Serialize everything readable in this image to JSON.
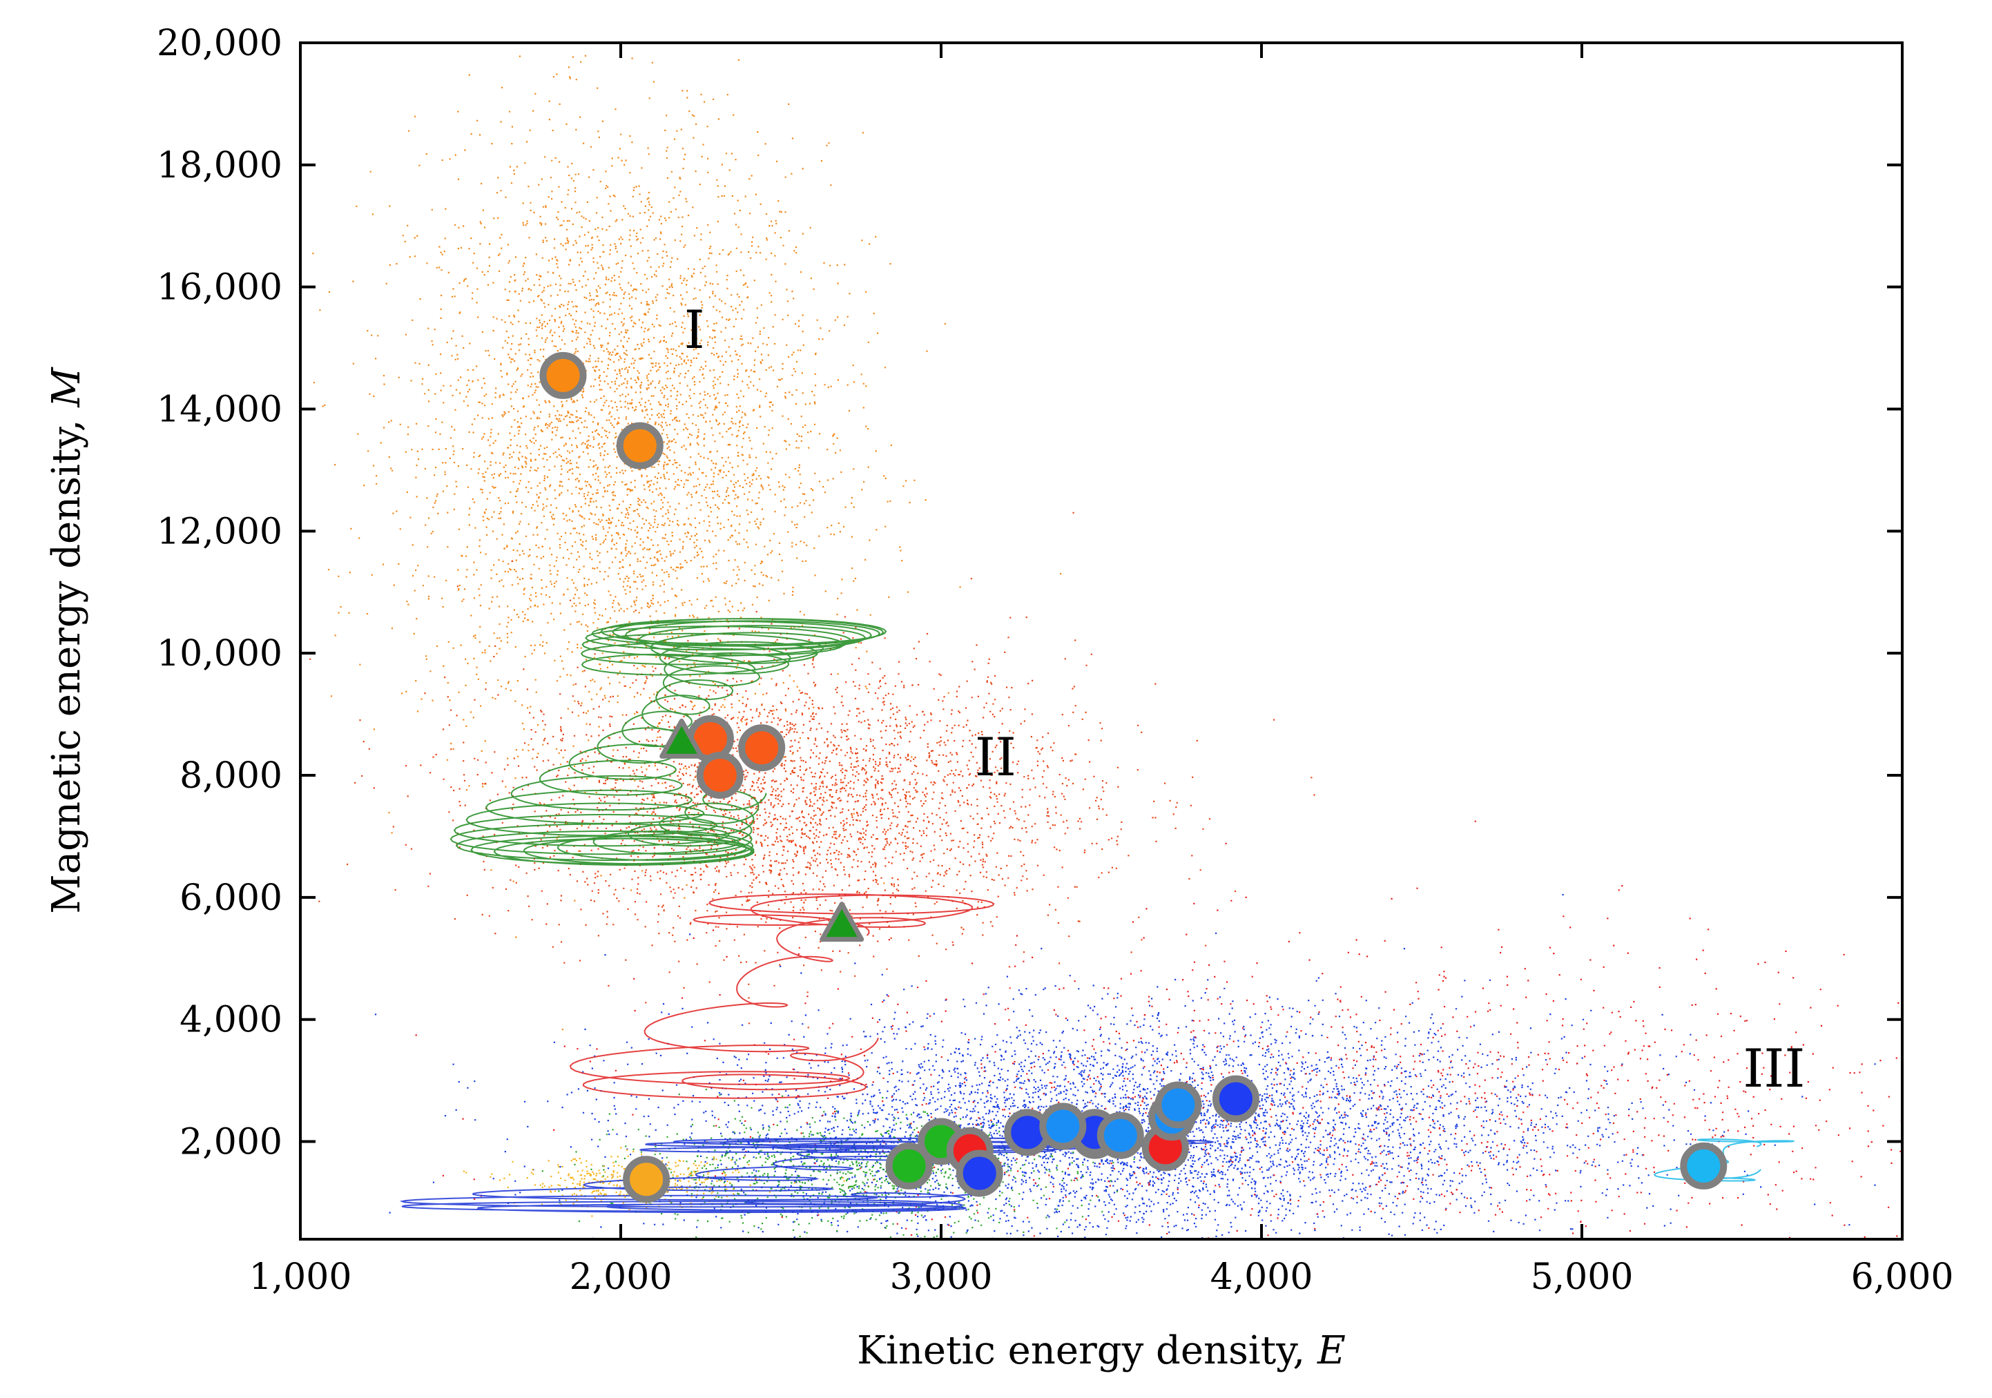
{
  "chart_data": {
    "type": "scatter",
    "xlabel": "Kinetic energy density, ",
    "xlabel_var": "E",
    "ylabel": "Magnetic energy density, ",
    "ylabel_var": "M",
    "xlim": [
      1000,
      6000
    ],
    "ylim": [
      400,
      20000
    ],
    "x_ticks": [
      1000,
      2000,
      3000,
      4000,
      5000,
      6000
    ],
    "x_tick_labels": [
      "1,000",
      "2,000",
      "3,000",
      "4,000",
      "5,000",
      "6,000"
    ],
    "y_ticks": [
      2000,
      4000,
      6000,
      8000,
      10000,
      12000,
      14000,
      16000,
      18000,
      20000
    ],
    "y_tick_labels": [
      "2,000",
      "4,000",
      "6,000",
      "8,000",
      "10,000",
      "12,000",
      "14,000",
      "16,000",
      "18,000",
      "20,000"
    ],
    "region_labels": [
      {
        "text": "I",
        "x": 2230,
        "y": 15000
      },
      {
        "text": "II",
        "x": 3170,
        "y": 8000
      },
      {
        "text": "III",
        "x": 5600,
        "y": 2900
      }
    ],
    "clouds": [
      {
        "name": "orange-cloud",
        "color": "#f28a1e",
        "cx": 2000,
        "cy": 13500,
        "sx": 320,
        "sy": 2400,
        "count": 4200
      },
      {
        "name": "red-orange-cloud",
        "color": "#e8491d",
        "cx": 2550,
        "cy": 7600,
        "sx": 450,
        "sy": 1100,
        "count": 3200
      },
      {
        "name": "blue-cloud",
        "color": "#1a3ee0",
        "cx": 3600,
        "cy": 2200,
        "sx": 700,
        "sy": 900,
        "count": 5200
      },
      {
        "name": "red-sparse-cloud",
        "color": "#e82020",
        "cx": 4300,
        "cy": 2600,
        "sx": 1000,
        "sy": 1300,
        "count": 1400
      },
      {
        "name": "green-sparse-cloud",
        "color": "#2fa82f",
        "cx": 2700,
        "cy": 1500,
        "sx": 350,
        "sy": 450,
        "count": 1000
      },
      {
        "name": "yellow-cloud",
        "color": "#f5b520",
        "cx": 2050,
        "cy": 1350,
        "sx": 180,
        "sy": 200,
        "count": 400
      }
    ],
    "trajectories": [
      {
        "name": "green-trajectory",
        "color": "#1e8a1e",
        "x_range": [
          1450,
          2850
        ],
        "y_range": [
          6400,
          10700
        ],
        "loops": 34
      },
      {
        "name": "red-trajectory",
        "color": "#e02020",
        "x_range": [
          1800,
          3200
        ],
        "y_range": [
          2600,
          6200
        ],
        "loops": 10
      },
      {
        "name": "blue-trajectory",
        "color": "#1a33d6",
        "x_range": [
          1250,
          3900
        ],
        "y_range": [
          800,
          2100
        ],
        "loops": 16
      },
      {
        "name": "cyan-trajectory",
        "color": "#1ab8e8",
        "x_range": [
          5200,
          5700
        ],
        "y_range": [
          1300,
          2100
        ],
        "loops": 4
      }
    ],
    "series": [
      {
        "name": "orange-mean",
        "color": "#f88a14",
        "marker": "circle",
        "points": [
          [
            1820,
            14550
          ],
          [
            2060,
            13400
          ]
        ]
      },
      {
        "name": "red-orange-mean",
        "color": "#f85a1a",
        "marker": "circle",
        "points": [
          [
            2280,
            8600
          ],
          [
            2440,
            8450
          ],
          [
            2310,
            8000
          ]
        ]
      },
      {
        "name": "green-triangles",
        "color": "#1a9a1a",
        "marker": "triangle",
        "points": [
          [
            2190,
            8550
          ],
          [
            2690,
            5550
          ]
        ]
      },
      {
        "name": "yellow-mean",
        "color": "#f7a821",
        "marker": "circle",
        "points": [
          [
            2080,
            1380
          ]
        ]
      },
      {
        "name": "green-means",
        "color": "#22b522",
        "marker": "circle",
        "points": [
          [
            2900,
            1600
          ],
          [
            3000,
            2000
          ]
        ]
      },
      {
        "name": "red-means",
        "color": "#f02020",
        "marker": "circle",
        "points": [
          [
            3090,
            1850
          ],
          [
            3480,
            2100
          ],
          [
            3700,
            1900
          ]
        ]
      },
      {
        "name": "blue-means",
        "color": "#1f3df2",
        "marker": "circle",
        "points": [
          [
            3120,
            1480
          ],
          [
            3270,
            2150
          ],
          [
            3480,
            2150
          ],
          [
            3920,
            2700
          ]
        ]
      },
      {
        "name": "light-blue-means",
        "color": "#1a8ef5",
        "marker": "circle",
        "points": [
          [
            3380,
            2250
          ],
          [
            3560,
            2100
          ],
          [
            3720,
            2400
          ],
          [
            3740,
            2600
          ]
        ]
      },
      {
        "name": "cyan-mean",
        "color": "#1cb6f2",
        "marker": "circle",
        "points": [
          [
            5380,
            1600
          ]
        ]
      }
    ]
  }
}
